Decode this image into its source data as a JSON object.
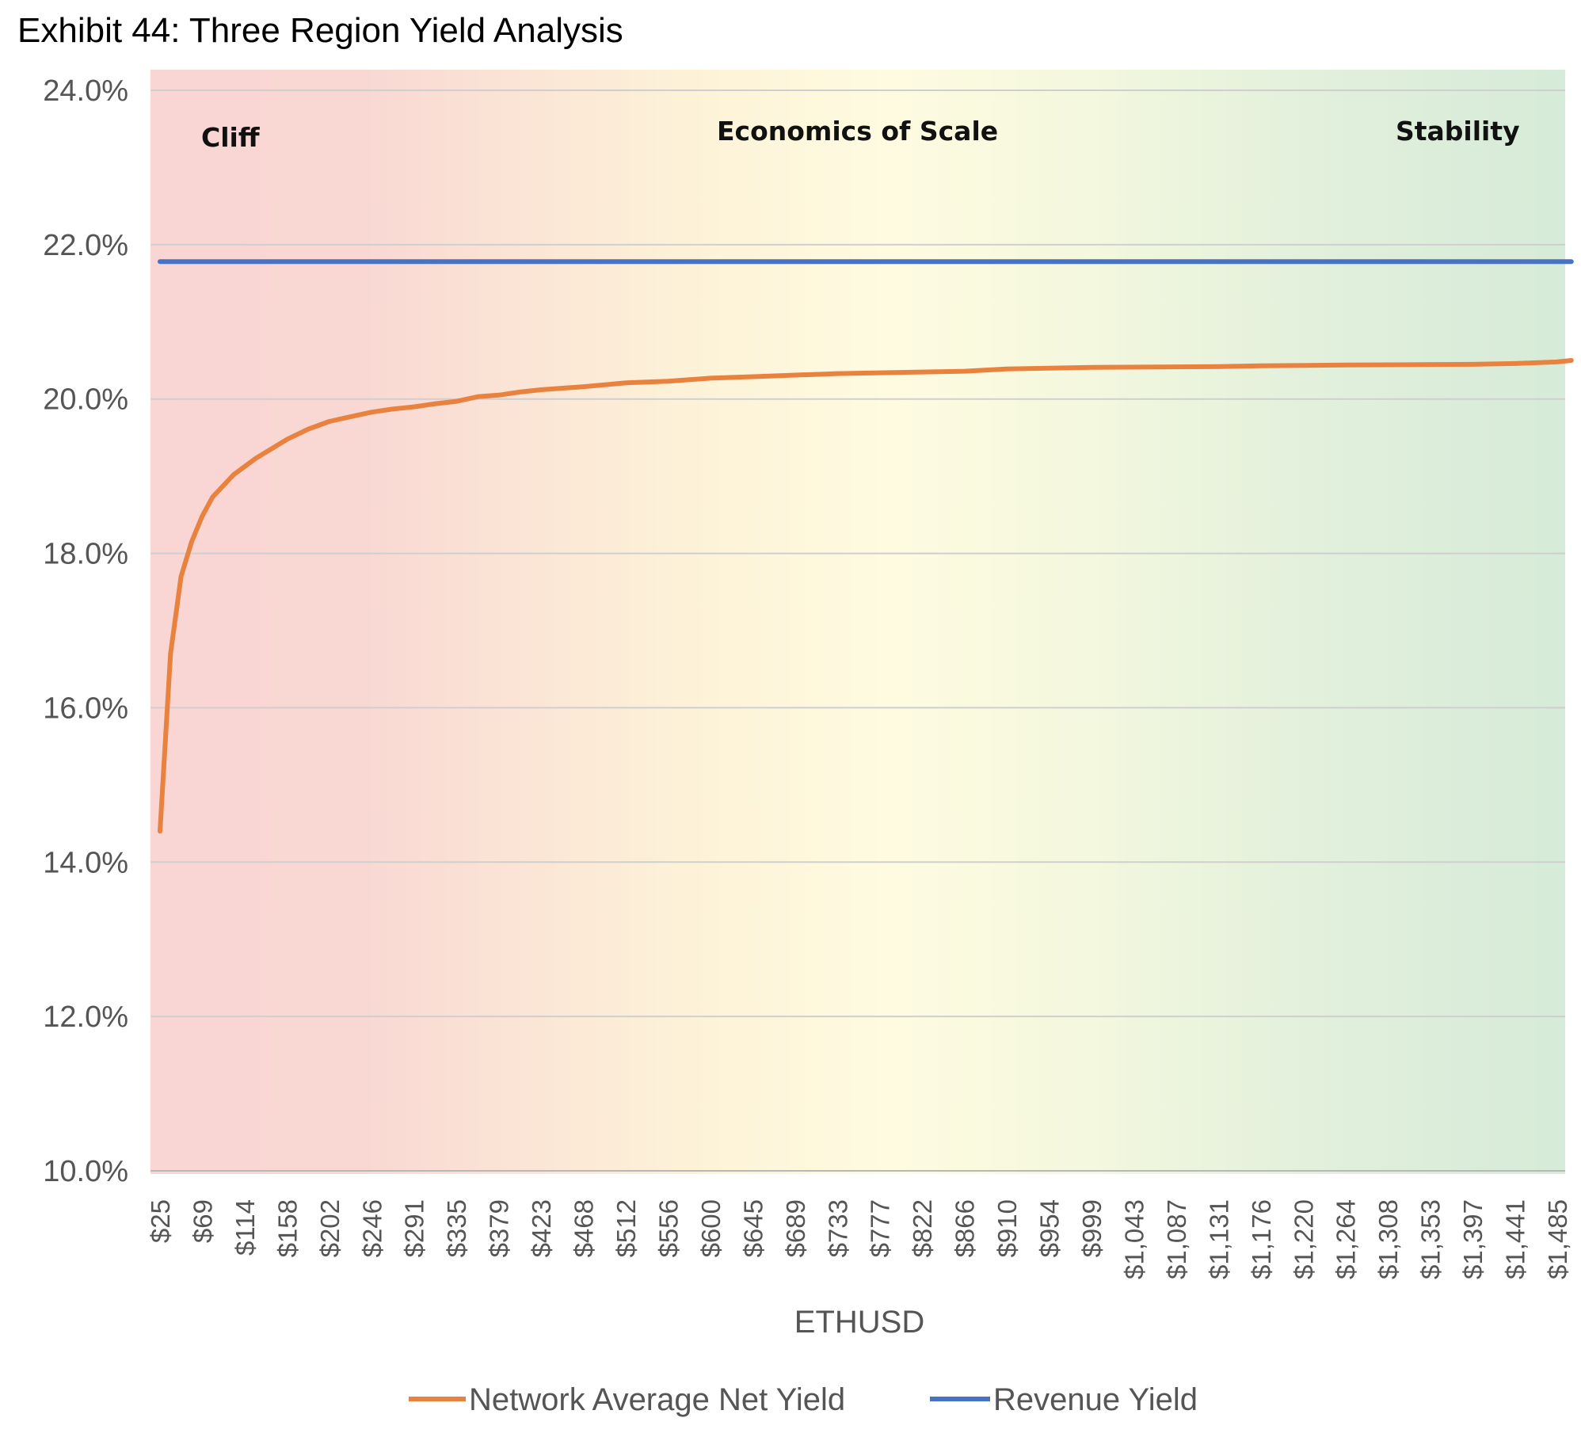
{
  "chart_data": {
    "type": "line",
    "title": "Exhibit 44: Three Region Yield Analysis",
    "xlabel": "ETHUSD",
    "ylabel": "",
    "ylim": [
      0.1,
      0.24
    ],
    "y_ticks": [
      "10.0%",
      "12.0%",
      "14.0%",
      "16.0%",
      "18.0%",
      "20.0%",
      "22.0%",
      "24.0%"
    ],
    "x_start": 25,
    "x_step": 11.0625,
    "x_count": 133,
    "x_tick_every": 4,
    "x_ticks": [
      "$25",
      "$69",
      "$114",
      "$158",
      "$202",
      "$246",
      "$291",
      "$335",
      "$379",
      "$423",
      "$468",
      "$512",
      "$556",
      "$600",
      "$645",
      "$689",
      "$733",
      "$777",
      "$822",
      "$866",
      "$910",
      "$954",
      "$999",
      "$1,043",
      "$1,087",
      "$1,131",
      "$1,176",
      "$1,220",
      "$1,264",
      "$1,308",
      "$1,353",
      "$1,397",
      "$1,441",
      "$1,485"
    ],
    "regions": [
      {
        "label": "Cliff",
        "color": "#f9d5d3"
      },
      {
        "label": "Economics of Scale",
        "color": "#fefbe0"
      },
      {
        "label": "Stability",
        "color": "#d9ecda"
      }
    ],
    "grid": true,
    "legend_position": "bottom",
    "series": [
      {
        "name": "Network Average Net Yield",
        "color": "#e8823e",
        "points": [
          [
            25,
            0.144
          ],
          [
            36,
            0.167
          ],
          [
            47,
            0.177
          ],
          [
            58,
            0.1815
          ],
          [
            69,
            0.1848
          ],
          [
            80,
            0.1873
          ],
          [
            102,
            0.1902
          ],
          [
            125,
            0.1923
          ],
          [
            158,
            0.1948
          ],
          [
            180,
            0.1961
          ],
          [
            202,
            0.1971
          ],
          [
            224,
            0.1977
          ],
          [
            246,
            0.1983
          ],
          [
            268,
            0.1987
          ],
          [
            291,
            0.199
          ],
          [
            313,
            0.1994
          ],
          [
            335,
            0.1997
          ],
          [
            357,
            0.2003
          ],
          [
            379,
            0.2005
          ],
          [
            401,
            0.2009
          ],
          [
            423,
            0.2012
          ],
          [
            468,
            0.2016
          ],
          [
            512,
            0.2021
          ],
          [
            556,
            0.2023
          ],
          [
            600,
            0.2027
          ],
          [
            645,
            0.2029
          ],
          [
            689,
            0.2031
          ],
          [
            733,
            0.2033
          ],
          [
            777,
            0.2034
          ],
          [
            822,
            0.2035
          ],
          [
            866,
            0.2036
          ],
          [
            910,
            0.2039
          ],
          [
            999,
            0.2041
          ],
          [
            1131,
            0.2042
          ],
          [
            1176,
            0.2043
          ],
          [
            1264,
            0.2044
          ],
          [
            1397,
            0.2045
          ],
          [
            1441,
            0.2046
          ],
          [
            1463,
            0.2047
          ],
          [
            1485,
            0.2048
          ],
          [
            1500,
            0.205
          ]
        ]
      },
      {
        "name": "Revenue Yield",
        "color": "#4a72c4",
        "points": [
          [
            25,
            0.2178
          ],
          [
            1500,
            0.2178
          ]
        ]
      }
    ]
  }
}
